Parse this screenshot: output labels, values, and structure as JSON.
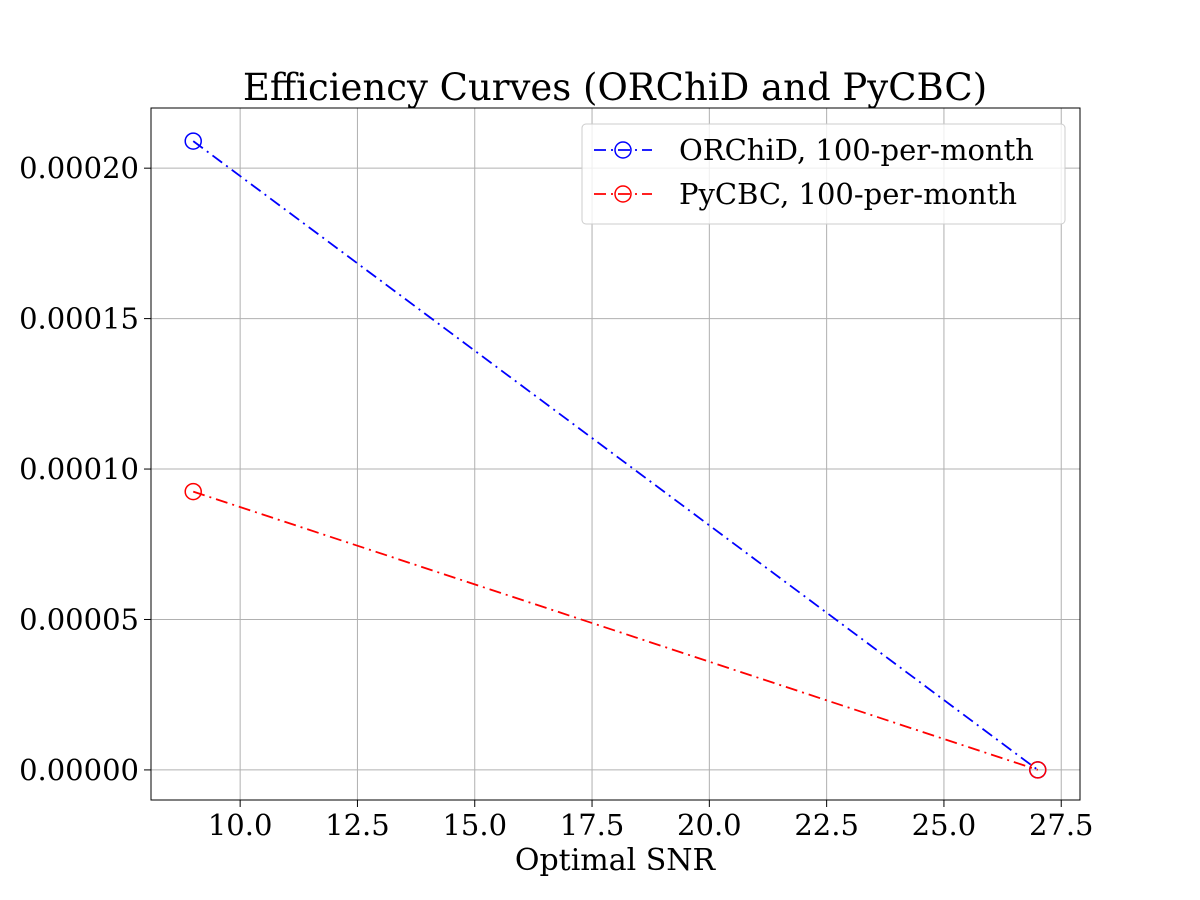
{
  "chart_data": {
    "type": "line",
    "title": "Efficiency Curves (ORChiD and PyCBC)",
    "xlabel": "Optimal SNR",
    "ylabel": "",
    "xlim": [
      8.1,
      27.9
    ],
    "ylim": [
      -1e-05,
      0.00022
    ],
    "xticks": [
      10.0,
      12.5,
      15.0,
      17.5,
      20.0,
      22.5,
      25.0,
      27.5
    ],
    "xtick_labels": [
      "10.0",
      "12.5",
      "15.0",
      "17.5",
      "20.0",
      "22.5",
      "25.0",
      "27.5"
    ],
    "yticks": [
      0,
      5e-05,
      0.0001,
      0.00015,
      0.0002
    ],
    "ytick_labels": [
      "0.00000",
      "0.00005",
      "0.00010",
      "0.00015",
      "0.00020"
    ],
    "grid": true,
    "legend_position": "top-right",
    "series": [
      {
        "name": "ORChiD, 100-per-month",
        "color": "#0000ff",
        "linestyle": "dashdot",
        "marker": "open-circle",
        "x": [
          9.0,
          27.0
        ],
        "y": [
          0.000209,
          0.0
        ]
      },
      {
        "name": "PyCBC, 100-per-month",
        "color": "#ff0000",
        "linestyle": "dashdot",
        "marker": "open-circle",
        "x": [
          9.0,
          27.0
        ],
        "y": [
          9.25e-05,
          0.0
        ]
      }
    ]
  }
}
